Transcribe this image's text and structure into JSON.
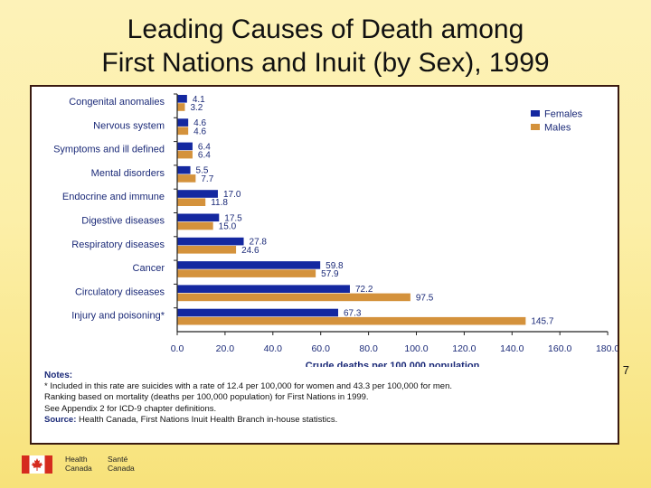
{
  "slide": {
    "title_line1": "Leading Causes of Death among",
    "title_line2": "First Nations and Inuit (by Sex), 1999",
    "page_number": "7"
  },
  "chart_data": {
    "type": "bar",
    "orientation": "horizontal",
    "categories": [
      "Congenital anomalies",
      "Nervous system",
      "Symptoms and ill defined",
      "Mental disorders",
      "Endocrine and immune",
      "Digestive diseases",
      "Respiratory diseases",
      "Cancer",
      "Circulatory diseases",
      "Injury and poisoning*"
    ],
    "series": [
      {
        "name": "Females",
        "color": "#1428a0",
        "values": [
          4.1,
          4.6,
          6.4,
          5.5,
          17.0,
          17.5,
          27.8,
          59.8,
          72.2,
          67.3
        ],
        "labels": [
          "4.1",
          "4.6",
          "6.4",
          "5.5",
          "17.0",
          "17.5",
          "27.8",
          "59.8",
          "72.2",
          "67.3"
        ]
      },
      {
        "name": "Males",
        "color": "#d4923c",
        "values": [
          3.2,
          4.6,
          6.4,
          7.7,
          11.8,
          15.0,
          24.6,
          57.9,
          97.5,
          145.7
        ],
        "labels": [
          "3.2",
          "4.6",
          "6.4",
          "7.7",
          "11.8",
          "15.0",
          "24.6",
          "57.9",
          "97.5",
          "145.7"
        ]
      }
    ],
    "xlim": [
      0,
      180
    ],
    "xticks": [
      0,
      20,
      40,
      60,
      80,
      100,
      120,
      140,
      160,
      180
    ],
    "xtick_labels": [
      "0.0",
      "20.0",
      "40.0",
      "60.0",
      "80.0",
      "100.0",
      "120.0",
      "140.0",
      "160.0",
      "180.0"
    ],
    "xlabel": "Crude deaths per 100,000 population",
    "ylabel": "",
    "title": "",
    "legend_position": "top-right",
    "grid": false
  },
  "notes": {
    "heading": "Notes:",
    "line1": "* Included in this rate are suicides with a rate of 12.4 per 100,000 for women and 43.3 per 100,000 for men.",
    "line2": "Ranking based on mortality (deaths per 100,000 population) for First Nations in 1999.",
    "line3": "See Appendix 2 for ICD-9 chapter definitions.",
    "source_label": "Source:",
    "source_text": " Health Canada, First Nations Inuit Health Branch in-house statistics."
  },
  "logo": {
    "en_line1": "Health",
    "en_line2": "Canada",
    "fr_line1": "Santé",
    "fr_line2": "Canada",
    "flag_color": "#d52b1e"
  }
}
